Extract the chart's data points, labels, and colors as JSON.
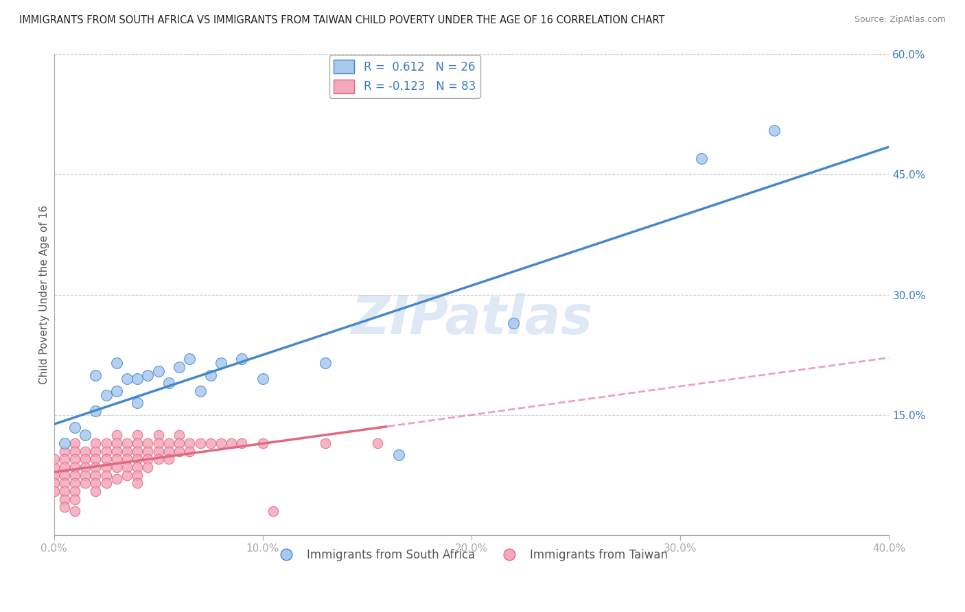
{
  "title": "IMMIGRANTS FROM SOUTH AFRICA VS IMMIGRANTS FROM TAIWAN CHILD POVERTY UNDER THE AGE OF 16 CORRELATION CHART",
  "source": "Source: ZipAtlas.com",
  "ylabel": "Child Poverty Under the Age of 16",
  "xlim": [
    0.0,
    0.4
  ],
  "ylim": [
    0.0,
    0.6
  ],
  "xtick_labels": [
    "0.0%",
    "10.0%",
    "20.0%",
    "30.0%",
    "40.0%"
  ],
  "xtick_vals": [
    0.0,
    0.1,
    0.2,
    0.3,
    0.4
  ],
  "ytick_labels_right": [
    "60.0%",
    "45.0%",
    "30.0%",
    "15.0%"
  ],
  "ytick_vals_right": [
    0.6,
    0.45,
    0.3,
    0.15
  ],
  "ytick_vals_grid": [
    0.15,
    0.3,
    0.45,
    0.6
  ],
  "watermark": "ZIPatlas",
  "legend1_label": "R =  0.612   N = 26",
  "legend2_label": "R = -0.123   N = 83",
  "color_blue": "#a8c8ee",
  "color_pink": "#f4a8bc",
  "line_color_blue": "#4488cc",
  "line_color_pink": "#e06880",
  "background_color": "#ffffff",
  "grid_color": "#cccccc",
  "blue_scatter_x": [
    0.005,
    0.01,
    0.015,
    0.02,
    0.025,
    0.02,
    0.03,
    0.035,
    0.03,
    0.04,
    0.04,
    0.045,
    0.05,
    0.055,
    0.06,
    0.065,
    0.07,
    0.075,
    0.08,
    0.09,
    0.1,
    0.13,
    0.165,
    0.22,
    0.31,
    0.345
  ],
  "blue_scatter_y": [
    0.115,
    0.135,
    0.125,
    0.155,
    0.175,
    0.2,
    0.18,
    0.195,
    0.215,
    0.165,
    0.195,
    0.2,
    0.205,
    0.19,
    0.21,
    0.22,
    0.18,
    0.2,
    0.215,
    0.22,
    0.195,
    0.215,
    0.1,
    0.265,
    0.47,
    0.505
  ],
  "pink_scatter_x": [
    0.0,
    0.0,
    0.0,
    0.0,
    0.0,
    0.005,
    0.005,
    0.005,
    0.005,
    0.005,
    0.005,
    0.005,
    0.005,
    0.01,
    0.01,
    0.01,
    0.01,
    0.01,
    0.01,
    0.01,
    0.01,
    0.01,
    0.015,
    0.015,
    0.015,
    0.015,
    0.015,
    0.02,
    0.02,
    0.02,
    0.02,
    0.02,
    0.02,
    0.02,
    0.025,
    0.025,
    0.025,
    0.025,
    0.025,
    0.025,
    0.03,
    0.03,
    0.03,
    0.03,
    0.03,
    0.03,
    0.035,
    0.035,
    0.035,
    0.035,
    0.035,
    0.04,
    0.04,
    0.04,
    0.04,
    0.04,
    0.04,
    0.04,
    0.045,
    0.045,
    0.045,
    0.045,
    0.05,
    0.05,
    0.05,
    0.05,
    0.055,
    0.055,
    0.055,
    0.06,
    0.06,
    0.06,
    0.065,
    0.065,
    0.07,
    0.075,
    0.08,
    0.085,
    0.09,
    0.1,
    0.105,
    0.13,
    0.155
  ],
  "pink_scatter_y": [
    0.085,
    0.095,
    0.075,
    0.065,
    0.055,
    0.105,
    0.095,
    0.085,
    0.075,
    0.065,
    0.055,
    0.045,
    0.035,
    0.115,
    0.105,
    0.095,
    0.085,
    0.075,
    0.065,
    0.055,
    0.045,
    0.03,
    0.105,
    0.095,
    0.085,
    0.075,
    0.065,
    0.115,
    0.105,
    0.095,
    0.085,
    0.075,
    0.065,
    0.055,
    0.115,
    0.105,
    0.095,
    0.085,
    0.075,
    0.065,
    0.125,
    0.115,
    0.105,
    0.095,
    0.085,
    0.07,
    0.115,
    0.105,
    0.095,
    0.085,
    0.075,
    0.125,
    0.115,
    0.105,
    0.095,
    0.085,
    0.075,
    0.065,
    0.115,
    0.105,
    0.095,
    0.085,
    0.125,
    0.115,
    0.105,
    0.095,
    0.115,
    0.105,
    0.095,
    0.125,
    0.115,
    0.105,
    0.115,
    0.105,
    0.115,
    0.115,
    0.115,
    0.115,
    0.115,
    0.115,
    0.03,
    0.115,
    0.115
  ]
}
